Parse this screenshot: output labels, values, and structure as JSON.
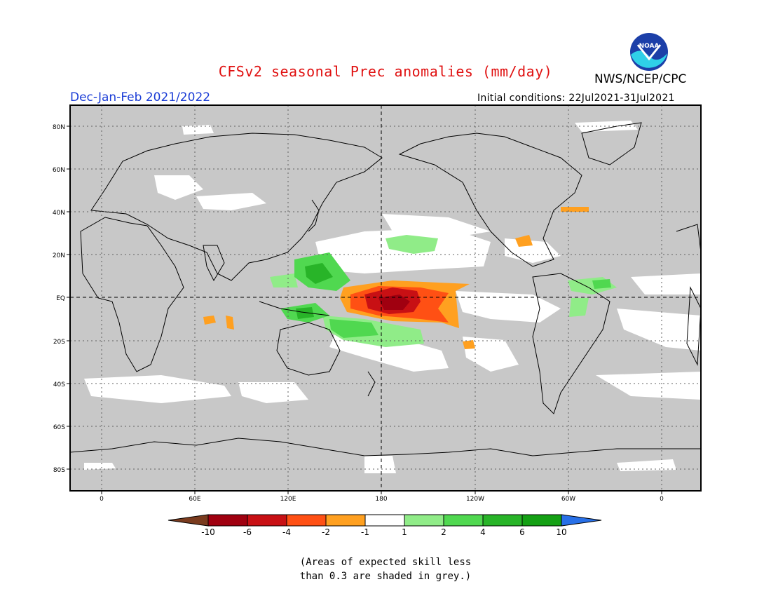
{
  "header": {
    "title": "CFSv2 seasonal Prec anomalies (mm/day)",
    "agency": "NWS/NCEP/CPC",
    "logo_text": "NOAA",
    "season": "Dec-Jan-Feb 2021/2022",
    "initial_conditions": "Initial conditions: 22Jul2021-31Jul2021"
  },
  "map": {
    "lat_labels": [
      "80N",
      "60N",
      "40N",
      "20N",
      "EQ",
      "20S",
      "40S",
      "60S",
      "80S"
    ],
    "lon_labels": [
      "0",
      "60E",
      "120E",
      "180",
      "120W",
      "60W",
      "0"
    ]
  },
  "colorbar": {
    "labels": [
      "-10",
      "-6",
      "-4",
      "-2",
      "-1",
      "1",
      "2",
      "4",
      "6",
      "10"
    ],
    "colors": [
      "#7a3b1e",
      "#a00010",
      "#c81014",
      "#ff5014",
      "#ffa020",
      "#ffffff",
      "#90ec88",
      "#50d850",
      "#28b428",
      "#14a014",
      "#2870e8"
    ]
  },
  "footnote": {
    "line1": "(Areas of expected skill less",
    "line2": "than 0.3 are shaded in grey.)"
  }
}
